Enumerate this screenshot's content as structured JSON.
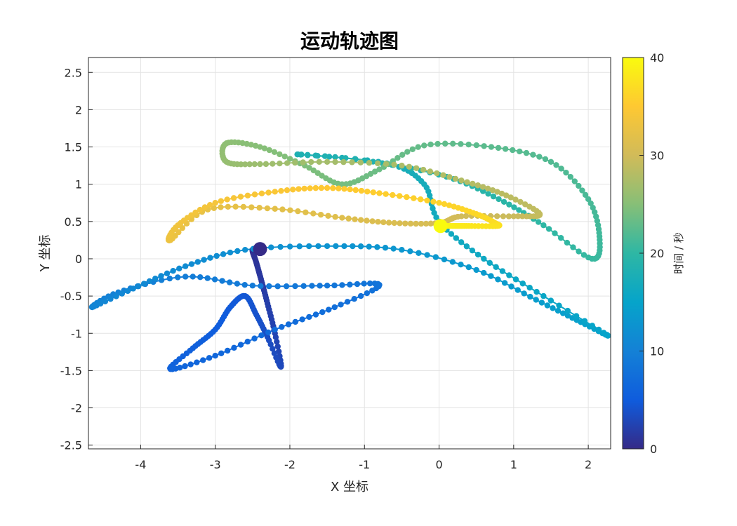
{
  "chart_data": {
    "type": "line",
    "title": "运动轨迹图",
    "xlabel": "X 坐标",
    "ylabel": "Y 坐标",
    "xlim": [
      -4.7,
      2.3
    ],
    "ylim": [
      -2.55,
      2.7
    ],
    "x_ticks": [
      -4,
      -3,
      -2,
      -1,
      0,
      1,
      2
    ],
    "y_ticks": [
      -2.5,
      -2,
      -1.5,
      -1,
      -0.5,
      0,
      0.5,
      1,
      1.5,
      2,
      2.5
    ],
    "grid": true,
    "colorbar": {
      "label": "时间 / 秒",
      "range": [
        0,
        40
      ],
      "ticks": [
        0,
        10,
        20,
        30,
        40
      ],
      "colormap": "parula",
      "colors": [
        "#352a87",
        "#0f5cdd",
        "#1481d6",
        "#06a4ca",
        "#2eb7a4",
        "#87bf77",
        "#d1bb59",
        "#fec832",
        "#f9fb0e"
      ]
    },
    "start_point": {
      "x": -2.4,
      "y": 0.13,
      "t": 0
    },
    "end_point": {
      "x": 0.02,
      "y": 0.44,
      "t": 40
    },
    "trajectory": [
      {
        "t": 0.0,
        "x": -2.4,
        "y": 0.13
      },
      {
        "t": 0.5,
        "x": -2.5,
        "y": 0.12
      },
      {
        "t": 1.0,
        "x": -2.45,
        "y": -0.05
      },
      {
        "t": 1.5,
        "x": -2.38,
        "y": -0.3
      },
      {
        "t": 2.0,
        "x": -2.3,
        "y": -0.6
      },
      {
        "t": 2.5,
        "x": -2.2,
        "y": -1.0
      },
      {
        "t": 3.0,
        "x": -2.12,
        "y": -1.45
      },
      {
        "t": 3.5,
        "x": -2.3,
        "y": -1.05
      },
      {
        "t": 4.0,
        "x": -2.45,
        "y": -0.75
      },
      {
        "t": 4.4,
        "x": -2.6,
        "y": -0.5
      },
      {
        "t": 4.8,
        "x": -2.8,
        "y": -0.65
      },
      {
        "t": 5.2,
        "x": -3.0,
        "y": -0.95
      },
      {
        "t": 5.6,
        "x": -3.3,
        "y": -1.2
      },
      {
        "t": 6.0,
        "x": -3.6,
        "y": -1.48
      },
      {
        "t": 6.5,
        "x": -3.0,
        "y": -1.3
      },
      {
        "t": 7.0,
        "x": -2.2,
        "y": -0.95
      },
      {
        "t": 7.5,
        "x": -1.4,
        "y": -0.65
      },
      {
        "t": 8.0,
        "x": -0.8,
        "y": -0.35
      },
      {
        "t": 8.5,
        "x": -1.5,
        "y": -0.36
      },
      {
        "t": 9.0,
        "x": -2.5,
        "y": -0.36
      },
      {
        "t": 9.5,
        "x": -3.4,
        "y": -0.24
      },
      {
        "t": 10.0,
        "x": -4.3,
        "y": -0.45
      },
      {
        "t": 10.5,
        "x": -4.65,
        "y": -0.65
      },
      {
        "t": 11.0,
        "x": -4.1,
        "y": -0.4
      },
      {
        "t": 11.5,
        "x": -3.4,
        "y": -0.1
      },
      {
        "t": 12.0,
        "x": -2.6,
        "y": 0.12
      },
      {
        "t": 12.5,
        "x": -1.5,
        "y": 0.17
      },
      {
        "t": 13.0,
        "x": -0.5,
        "y": 0.12
      },
      {
        "t": 13.5,
        "x": 0.5,
        "y": -0.15
      },
      {
        "t": 14.0,
        "x": 1.3,
        "y": -0.55
      },
      {
        "t": 14.5,
        "x": 1.9,
        "y": -0.85
      },
      {
        "t": 15.0,
        "x": 2.25,
        "y": -1.02
      },
      {
        "t": 15.5,
        "x": 1.4,
        "y": -0.5
      },
      {
        "t": 16.0,
        "x": 0.6,
        "y": 0.0
      },
      {
        "t": 16.5,
        "x": 0.0,
        "y": 0.5
      },
      {
        "t": 17.0,
        "x": -0.2,
        "y": 1.0
      },
      {
        "t": 17.5,
        "x": -0.7,
        "y": 1.28
      },
      {
        "t": 18.0,
        "x": -1.9,
        "y": 1.4
      },
      {
        "t": 18.5,
        "x": -1.0,
        "y": 1.32
      },
      {
        "t": 19.0,
        "x": 0.1,
        "y": 1.1
      },
      {
        "t": 19.5,
        "x": 0.8,
        "y": 0.8
      },
      {
        "t": 20.0,
        "x": 1.4,
        "y": 0.45
      },
      {
        "t": 20.5,
        "x": 2.05,
        "y": 0.0
      },
      {
        "t": 21.0,
        "x": 2.15,
        "y": 0.3
      },
      {
        "t": 21.5,
        "x": 2.0,
        "y": 0.8
      },
      {
        "t": 22.0,
        "x": 1.5,
        "y": 1.3
      },
      {
        "t": 22.5,
        "x": 0.7,
        "y": 1.5
      },
      {
        "t": 23.0,
        "x": -0.2,
        "y": 1.52
      },
      {
        "t": 23.5,
        "x": -0.8,
        "y": 1.2
      },
      {
        "t": 24.0,
        "x": -1.3,
        "y": 1.0
      },
      {
        "t": 24.5,
        "x": -1.8,
        "y": 1.25
      },
      {
        "t": 25.0,
        "x": -2.4,
        "y": 1.5
      },
      {
        "t": 25.5,
        "x": -2.85,
        "y": 1.55
      },
      {
        "t": 26.0,
        "x": -2.85,
        "y": 1.3
      },
      {
        "t": 26.5,
        "x": -2.4,
        "y": 1.27
      },
      {
        "t": 27.0,
        "x": -1.5,
        "y": 1.3
      },
      {
        "t": 27.5,
        "x": -0.5,
        "y": 1.25
      },
      {
        "t": 28.0,
        "x": 0.3,
        "y": 1.05
      },
      {
        "t": 28.5,
        "x": 0.9,
        "y": 0.85
      },
      {
        "t": 29.0,
        "x": 1.35,
        "y": 0.6
      },
      {
        "t": 29.5,
        "x": 1.0,
        "y": 0.57
      },
      {
        "t": 30.0,
        "x": 0.3,
        "y": 0.57
      },
      {
        "t": 30.5,
        "x": 0.0,
        "y": 0.48
      },
      {
        "t": 31.0,
        "x": -0.6,
        "y": 0.48
      },
      {
        "t": 31.5,
        "x": -1.3,
        "y": 0.55
      },
      {
        "t": 32.0,
        "x": -2.2,
        "y": 0.67
      },
      {
        "t": 32.5,
        "x": -3.1,
        "y": 0.66
      },
      {
        "t": 33.0,
        "x": -3.6,
        "y": 0.25
      },
      {
        "t": 33.5,
        "x": -3.5,
        "y": 0.45
      },
      {
        "t": 34.0,
        "x": -3.0,
        "y": 0.75
      },
      {
        "t": 34.5,
        "x": -2.2,
        "y": 0.9
      },
      {
        "t": 35.0,
        "x": -1.5,
        "y": 0.95
      },
      {
        "t": 35.5,
        "x": -0.8,
        "y": 0.88
      },
      {
        "t": 36.0,
        "x": 0.0,
        "y": 0.75
      },
      {
        "t": 36.5,
        "x": 0.5,
        "y": 0.6
      },
      {
        "t": 37.0,
        "x": 0.75,
        "y": 0.48
      },
      {
        "t": 37.5,
        "x": 0.78,
        "y": 0.44
      },
      {
        "t": 38.0,
        "x": 0.4,
        "y": 0.44
      },
      {
        "t": 38.5,
        "x": 0.2,
        "y": 0.44
      },
      {
        "t": 40.0,
        "x": 0.02,
        "y": 0.44
      }
    ]
  }
}
